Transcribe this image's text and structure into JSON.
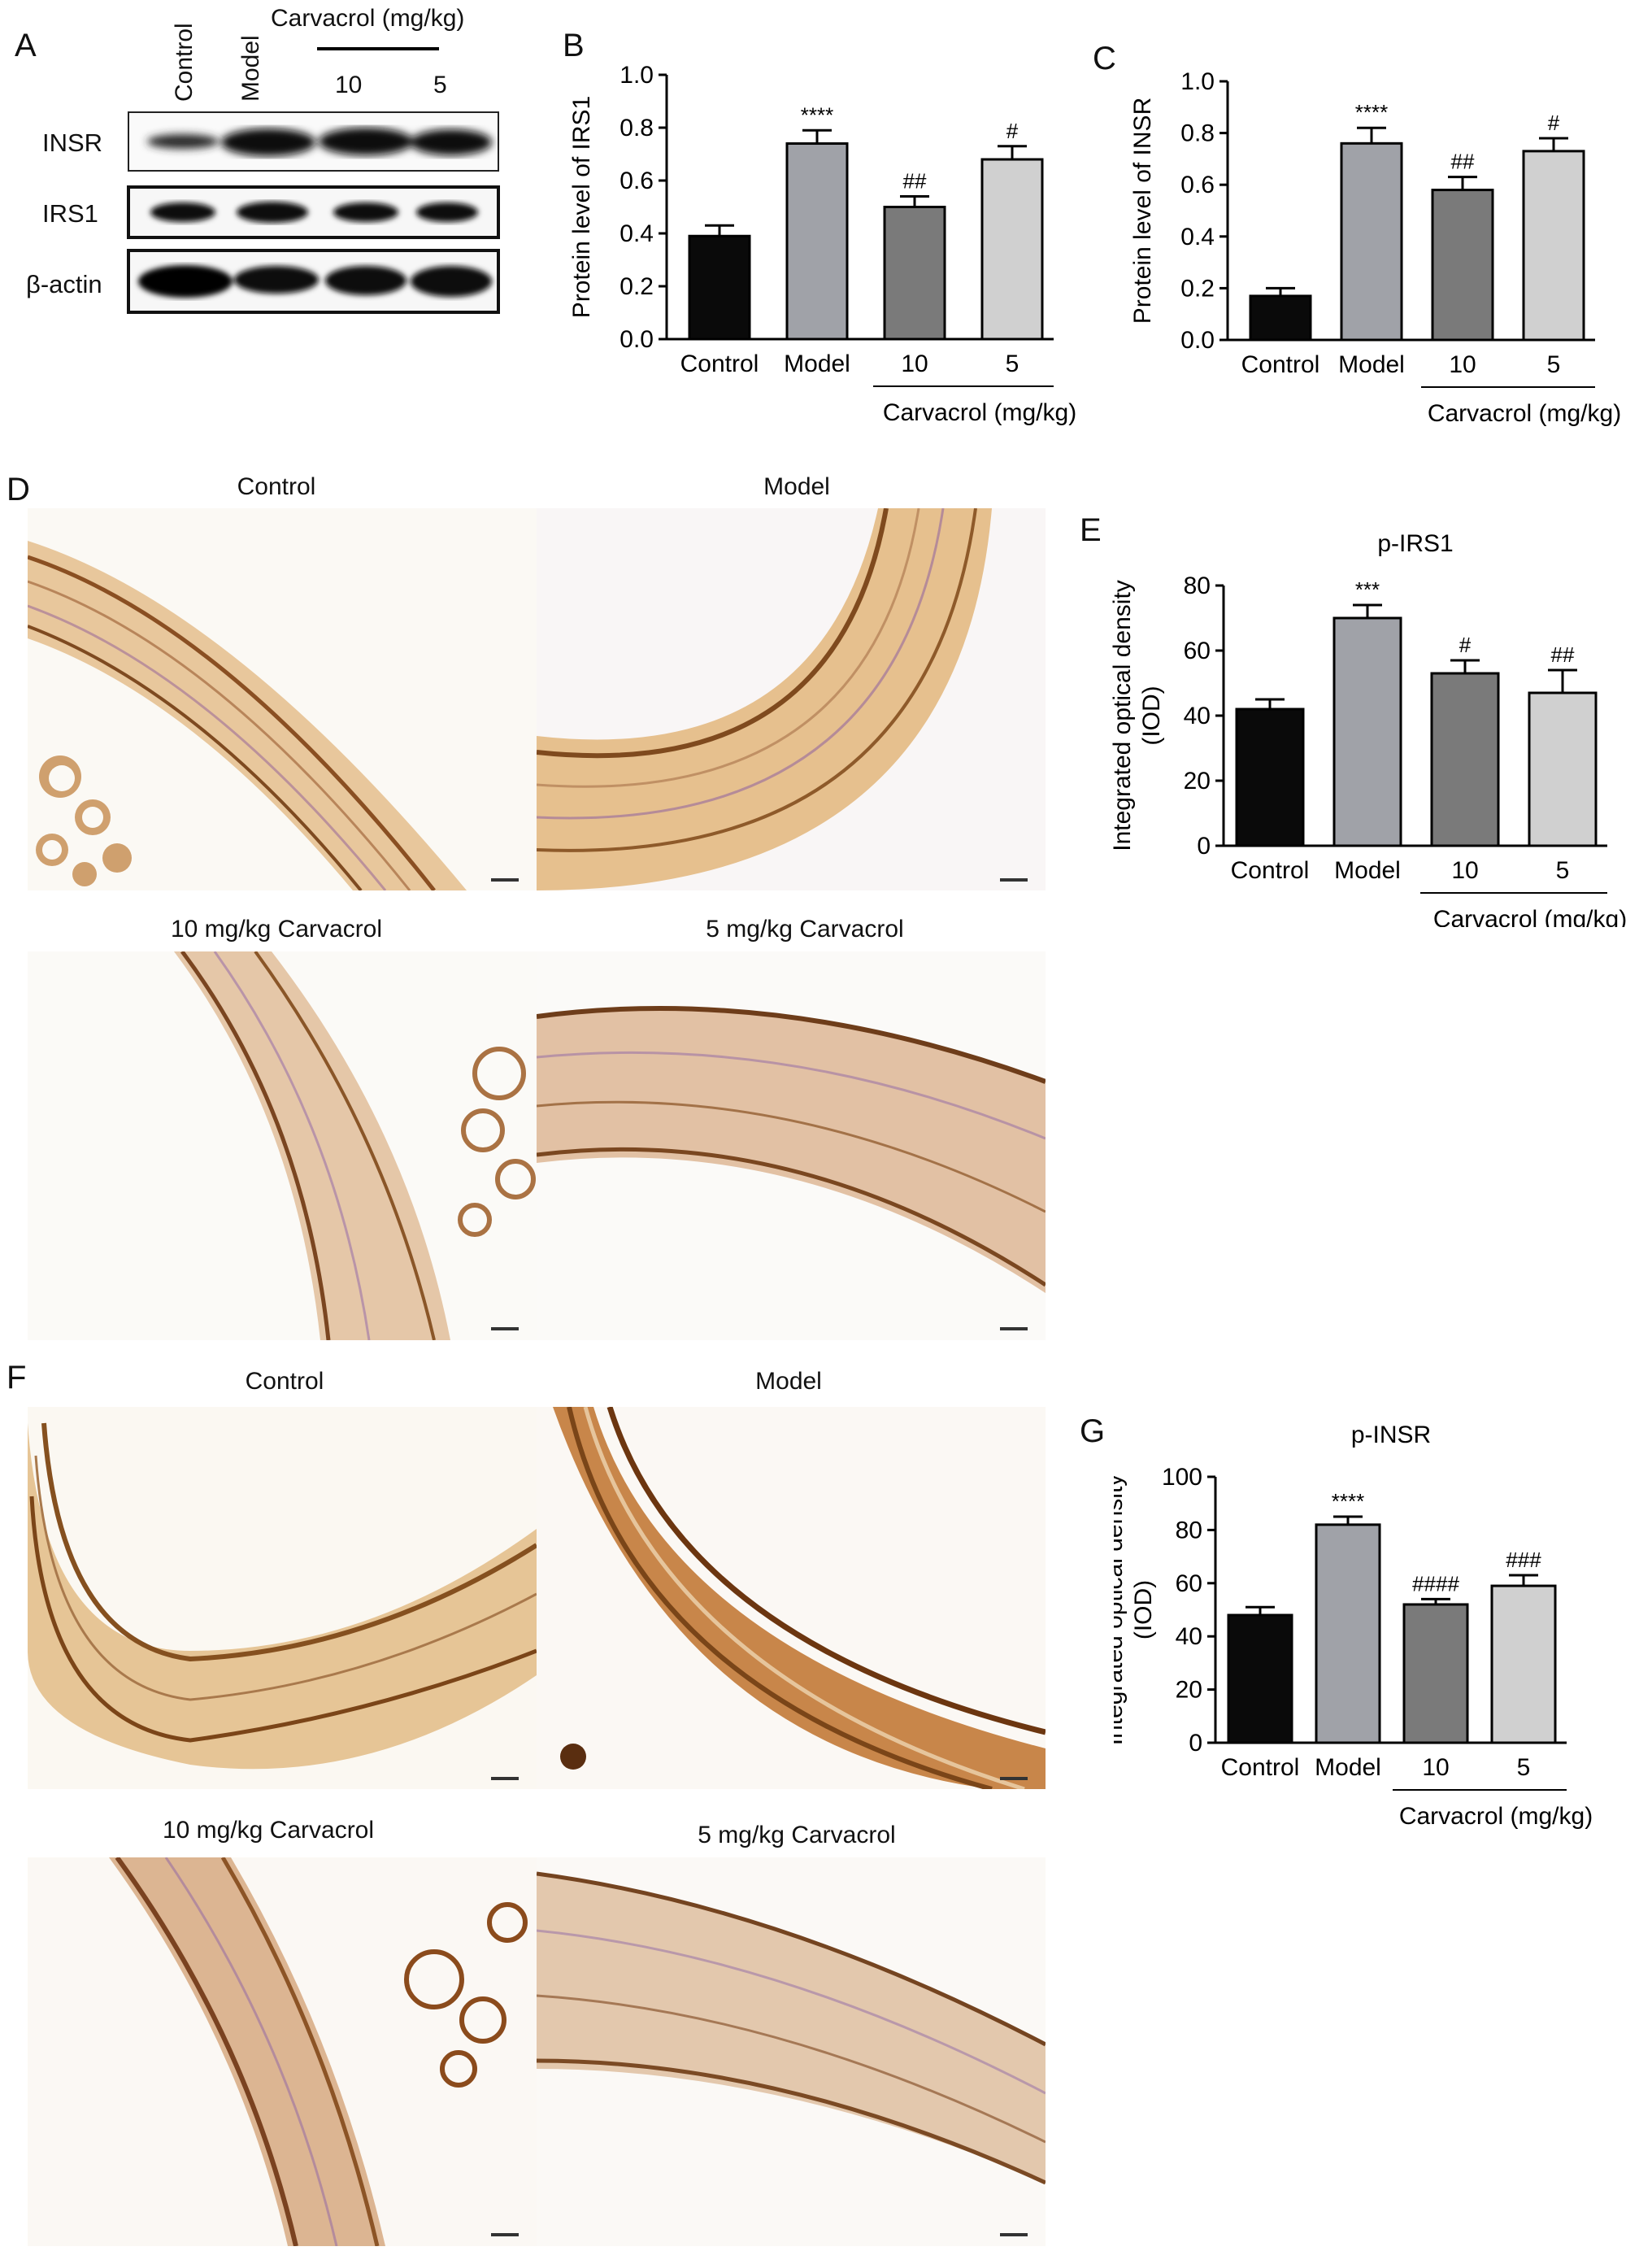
{
  "panels": {
    "A": {
      "letter": "A",
      "lanes": [
        "Control",
        "Model",
        "10",
        "5"
      ],
      "group_label": "Carvacrol (mg/kg)",
      "blots": [
        "INSR",
        "IRS1",
        "β-actin"
      ]
    },
    "D": {
      "letter": "D",
      "titles": [
        "Control",
        "Model",
        "10 mg/kg Carvacrol",
        "5 mg/kg Carvacrol"
      ]
    },
    "F": {
      "letter": "F",
      "titles": [
        "Control",
        "Model",
        "10 mg/kg Carvacrol",
        "5 mg/kg Carvacrol"
      ]
    }
  },
  "chart_data": [
    {
      "panel": "B",
      "type": "bar",
      "title": "",
      "ylabel": "Protein level of IRS1",
      "categories": [
        "Control",
        "Model",
        "10",
        "5"
      ],
      "group_label": "Carvacrol (mg/kg)",
      "values": [
        0.39,
        0.74,
        0.5,
        0.68
      ],
      "errors": [
        0.04,
        0.05,
        0.04,
        0.05
      ],
      "significance": [
        "",
        "****",
        "##",
        "#"
      ],
      "ylim": [
        0,
        1.0
      ],
      "yticks": [
        "0.0",
        "0.2",
        "0.4",
        "0.6",
        "0.8",
        "1.0"
      ],
      "colors": [
        "#0a0a0a",
        "#a0a2a8",
        "#7a7a7a",
        "#d0d0d0"
      ]
    },
    {
      "panel": "C",
      "type": "bar",
      "title": "",
      "ylabel": "Protein level of INSR",
      "categories": [
        "Control",
        "Model",
        "10",
        "5"
      ],
      "group_label": "Carvacrol (mg/kg)",
      "values": [
        0.17,
        0.76,
        0.58,
        0.73
      ],
      "errors": [
        0.03,
        0.06,
        0.05,
        0.05
      ],
      "significance": [
        "",
        "****",
        "##",
        "#"
      ],
      "ylim": [
        0,
        1.0
      ],
      "yticks": [
        "0.0",
        "0.2",
        "0.4",
        "0.6",
        "0.8",
        "1.0"
      ],
      "colors": [
        "#0a0a0a",
        "#a0a2a8",
        "#7a7a7a",
        "#d0d0d0"
      ]
    },
    {
      "panel": "E",
      "type": "bar",
      "title": "p-IRS1",
      "ylabel": "Integrated optical density (IOD)",
      "categories": [
        "Control",
        "Model",
        "10",
        "5"
      ],
      "group_label": "Carvacrol (mg/kg)",
      "values": [
        42,
        70,
        53,
        47
      ],
      "errors": [
        3,
        4,
        4,
        7
      ],
      "significance": [
        "",
        "***",
        "#",
        "##"
      ],
      "ylim": [
        0,
        80
      ],
      "yticks": [
        "0",
        "20",
        "40",
        "60",
        "80"
      ],
      "colors": [
        "#0a0a0a",
        "#a0a2a8",
        "#7a7a7a",
        "#d0d0d0"
      ]
    },
    {
      "panel": "G",
      "type": "bar",
      "title": "p-INSR",
      "ylabel": "Integrated optical density (IOD)",
      "categories": [
        "Control",
        "Model",
        "10",
        "5"
      ],
      "group_label": "Carvacrol (mg/kg)",
      "values": [
        48,
        82,
        52,
        59
      ],
      "errors": [
        3,
        3,
        2,
        4
      ],
      "significance": [
        "",
        "****",
        "####",
        "###"
      ],
      "ylim": [
        0,
        100
      ],
      "yticks": [
        "0",
        "20",
        "40",
        "60",
        "80",
        "100"
      ],
      "colors": [
        "#0a0a0a",
        "#a0a2a8",
        "#7a7a7a",
        "#d0d0d0"
      ]
    }
  ]
}
